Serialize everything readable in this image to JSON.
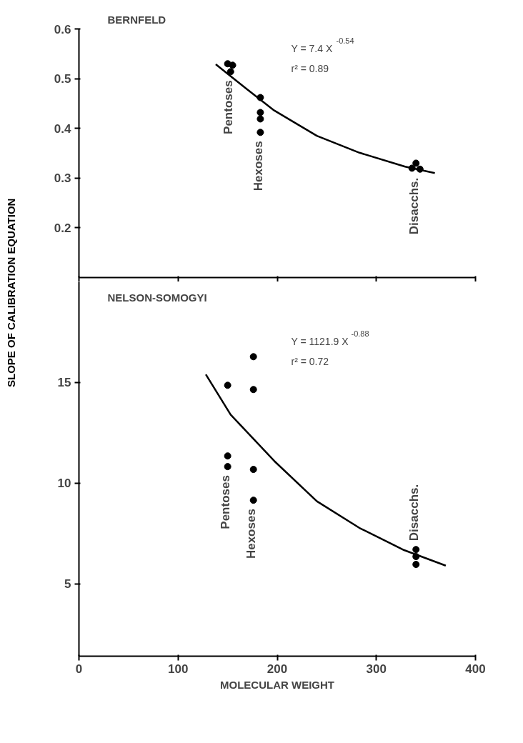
{
  "chart_data": [
    {
      "type": "scatter",
      "title": "BERNFELD",
      "ylabel": "SLOPE OF CALIBRATION EQUATION",
      "series": [
        {
          "color": "#000000",
          "x": [
            150,
            155,
            153,
            183,
            183,
            183,
            183,
            340,
            336,
            344
          ],
          "values": [
            0.53,
            0.527,
            0.514,
            0.462,
            0.432,
            0.419,
            0.392,
            0.33,
            0.32,
            0.318
          ]
        },
        {
          "type": "line",
          "marker": "none",
          "color": "#000000",
          "x": [
            138,
            168,
            197,
            240,
            283,
            329,
            359
          ],
          "values": [
            0.529,
            0.481,
            0.436,
            0.385,
            0.351,
            0.323,
            0.31
          ]
        }
      ],
      "xlim": [
        0,
        400
      ],
      "xticks": [
        0,
        100,
        200,
        300,
        400
      ],
      "ylim": [
        0.1,
        0.6
      ],
      "yticks": [
        0.2,
        0.3,
        0.4,
        0.5,
        0.6
      ],
      "tick_labels": "y",
      "grid": false,
      "marker": "circle",
      "line_style": "solid",
      "annotations": [
        "Y = 7.4 X$^{-0.54}$",
        "r² = 0.89",
        {
          "text": "Pentoses",
          "x": 153,
          "y": 0.514
        },
        {
          "text": "Hexoses",
          "x": 183,
          "y": 0.392
        },
        {
          "text": "Disacchs.",
          "x": 340,
          "y": 0.318
        }
      ]
    },
    {
      "type": "scatter",
      "title": "NELSON-SOMOGYI",
      "xlabel": "MOLECULAR WEIGHT",
      "series": [
        {
          "color": "#000000",
          "x": [
            150,
            150,
            150,
            176,
            176,
            176,
            176,
            340,
            340,
            340
          ],
          "values": [
            14.86,
            11.35,
            10.82,
            16.28,
            14.65,
            10.68,
            9.15,
            6.7,
            6.35,
            5.96
          ]
        },
        {
          "type": "line",
          "marker": "none",
          "color": "#000000",
          "x": [
            128,
            153,
            197,
            240,
            283,
            328,
            370
          ],
          "values": [
            15.4,
            13.4,
            11.1,
            9.1,
            7.77,
            6.67,
            5.9
          ]
        }
      ],
      "xlim": [
        0,
        400
      ],
      "xticks": [
        0,
        100,
        200,
        300,
        400
      ],
      "ylim": [
        1.4,
        20
      ],
      "yticks": [
        5,
        10,
        15
      ],
      "grid": false,
      "marker": "circle",
      "line_style": "solid",
      "annotations": [
        "Y = 1121.9 X$^{-0.88}$",
        "r² = 0.72",
        {
          "text": "Pentoses",
          "x": 150,
          "y": 10.82
        },
        {
          "text": "Hexoses",
          "x": 176,
          "y": 9.15
        },
        {
          "text": "Disacchs.",
          "x": 340,
          "y": 6.7
        }
      ]
    }
  ]
}
